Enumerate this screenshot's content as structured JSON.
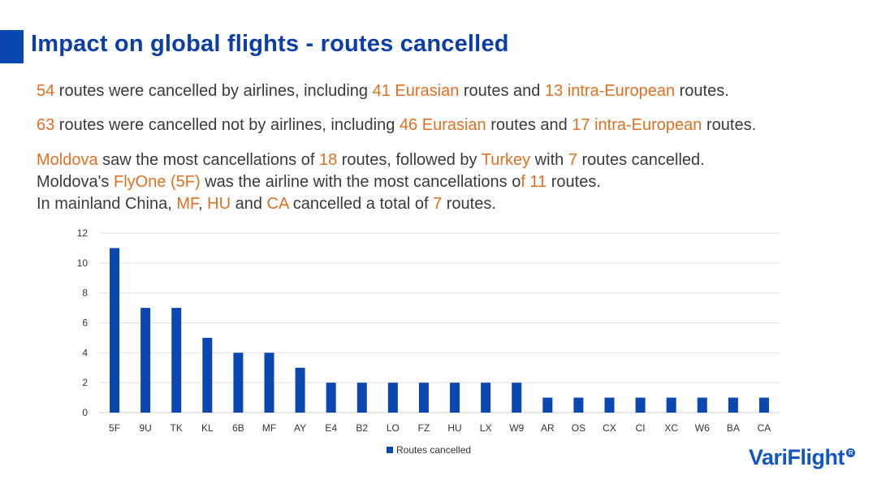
{
  "slide": {
    "title": "Impact on global flights - routes cancelled",
    "line1": {
      "a": "54",
      "b": " routes were cancelled by airlines, including ",
      "c": "41 Eurasian",
      "d": " routes and ",
      "e": "13 intra-European",
      "f": " routes."
    },
    "line2": {
      "a": "63",
      "b": " routes were cancelled not by airlines, including ",
      "c": "46 Eurasian",
      "d": " routes and ",
      "e": "17 intra-European",
      "f": " routes."
    },
    "line3": {
      "a": "Moldova",
      "b": " saw the most cancellations of ",
      "c": "18",
      "d": " routes, followed by ",
      "e": "Turkey",
      "f": " with ",
      "g": "7",
      "h": " routes cancelled."
    },
    "line4": {
      "a": "Moldova's ",
      "b": "FlyOne (5F)",
      "c": " was the airline with the most cancellations o",
      "d": "f 11",
      "e": " routes."
    },
    "line5": {
      "a": "In mainland China, ",
      "b": "MF",
      "c": ", ",
      "d": "HU",
      "e": " and ",
      "f": "CA",
      "g": " cancelled a total of ",
      "h": "7",
      "i": " routes."
    },
    "logo": {
      "text": "VariFlight",
      "mark": "R"
    }
  },
  "colors": {
    "accent": "#0a47b0",
    "highlight": "#e07022",
    "bar": "#0a47b0"
  },
  "chart_data": {
    "type": "bar",
    "categories": [
      "5F",
      "9U",
      "TK",
      "KL",
      "6B",
      "MF",
      "AY",
      "E4",
      "B2",
      "LO",
      "FZ",
      "HU",
      "LX",
      "W9",
      "AR",
      "OS",
      "CX",
      "CI",
      "XC",
      "W6",
      "BA",
      "CA"
    ],
    "series": [
      {
        "name": "Routes cancelled",
        "values": [
          11,
          7,
          7,
          5,
          4,
          4,
          3,
          2,
          2,
          2,
          2,
          2,
          2,
          2,
          1,
          1,
          1,
          1,
          1,
          1,
          1,
          1
        ]
      }
    ],
    "yticks": [
      "0",
      "2",
      "4",
      "6",
      "8",
      "10",
      "12"
    ],
    "ylim": [
      0,
      12
    ],
    "grid": true,
    "legend": "bottom-center",
    "title": "",
    "xlabel": "",
    "ylabel": ""
  }
}
